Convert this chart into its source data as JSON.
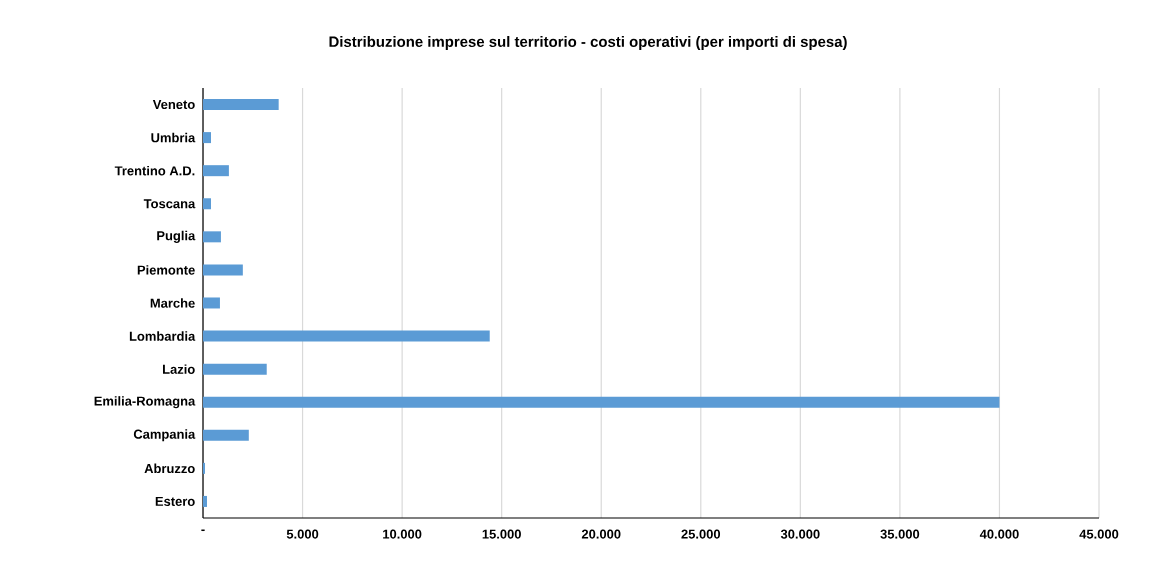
{
  "chart_data": {
    "type": "bar",
    "orientation": "horizontal",
    "title": "Distribuzione imprese sul territorio - costi operativi (per importi di spesa)",
    "categories": [
      "Veneto",
      "Umbria",
      "Trentino A.D.",
      "Toscana",
      "Puglia",
      "Piemonte",
      "Marche",
      "Lombardia",
      "Lazio",
      "Emilia-Romagna",
      "Campania",
      "Abruzzo",
      "Estero"
    ],
    "values": [
      3800,
      400,
      1300,
      400,
      900,
      2000,
      850,
      14400,
      3200,
      40000,
      2300,
      100,
      200
    ],
    "color": "#5b9bd5",
    "xlim": [
      0,
      45000
    ],
    "xticks": [
      {
        "value": 0,
        "label": "-"
      },
      {
        "value": 5000,
        "label": "5.000"
      },
      {
        "value": 10000,
        "label": "10.000"
      },
      {
        "value": 15000,
        "label": "15.000"
      },
      {
        "value": 20000,
        "label": "20.000"
      },
      {
        "value": 25000,
        "label": "25.000"
      },
      {
        "value": 30000,
        "label": "30.000"
      },
      {
        "value": 35000,
        "label": "35.000"
      },
      {
        "value": 40000,
        "label": "40.000"
      },
      {
        "value": 45000,
        "label": "45.000"
      }
    ],
    "grid": "x"
  }
}
